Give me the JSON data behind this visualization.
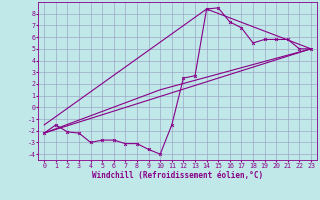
{
  "background_color": "#c0e8e8",
  "grid_color": "#a0a8c8",
  "line_color": "#880088",
  "marker_color": "#880088",
  "xlabel": "Windchill (Refroidissement éolien,°C)",
  "xlim": [
    -0.5,
    23.5
  ],
  "ylim": [
    -4.5,
    9.0
  ],
  "xticks": [
    0,
    1,
    2,
    3,
    4,
    5,
    6,
    7,
    8,
    9,
    10,
    11,
    12,
    13,
    14,
    15,
    16,
    17,
    18,
    19,
    20,
    21,
    22,
    23
  ],
  "yticks": [
    -4,
    -3,
    -2,
    -1,
    0,
    1,
    2,
    3,
    4,
    5,
    6,
    7,
    8
  ],
  "series1_x": [
    0,
    1,
    2,
    3,
    4,
    5,
    6,
    7,
    8,
    9,
    10,
    11,
    12,
    13,
    14,
    15,
    16,
    17,
    18,
    19,
    20,
    21,
    22,
    23
  ],
  "series1_y": [
    -2.2,
    -1.5,
    -2.1,
    -2.2,
    -3.0,
    -2.8,
    -2.8,
    -3.1,
    -3.1,
    -3.6,
    -4.0,
    -1.5,
    2.5,
    2.7,
    8.4,
    8.5,
    7.3,
    6.8,
    5.5,
    5.8,
    5.8,
    5.8,
    5.0,
    5.0
  ],
  "series2_x": [
    0,
    23
  ],
  "series2_y": [
    -2.2,
    5.0
  ],
  "series3_x": [
    0,
    10,
    23
  ],
  "series3_y": [
    -2.2,
    1.5,
    5.0
  ],
  "series4_x": [
    0,
    14,
    23
  ],
  "series4_y": [
    -1.5,
    8.4,
    5.0
  ],
  "tick_fontsize": 4.8,
  "label_fontsize": 5.5,
  "font_family": "monospace"
}
